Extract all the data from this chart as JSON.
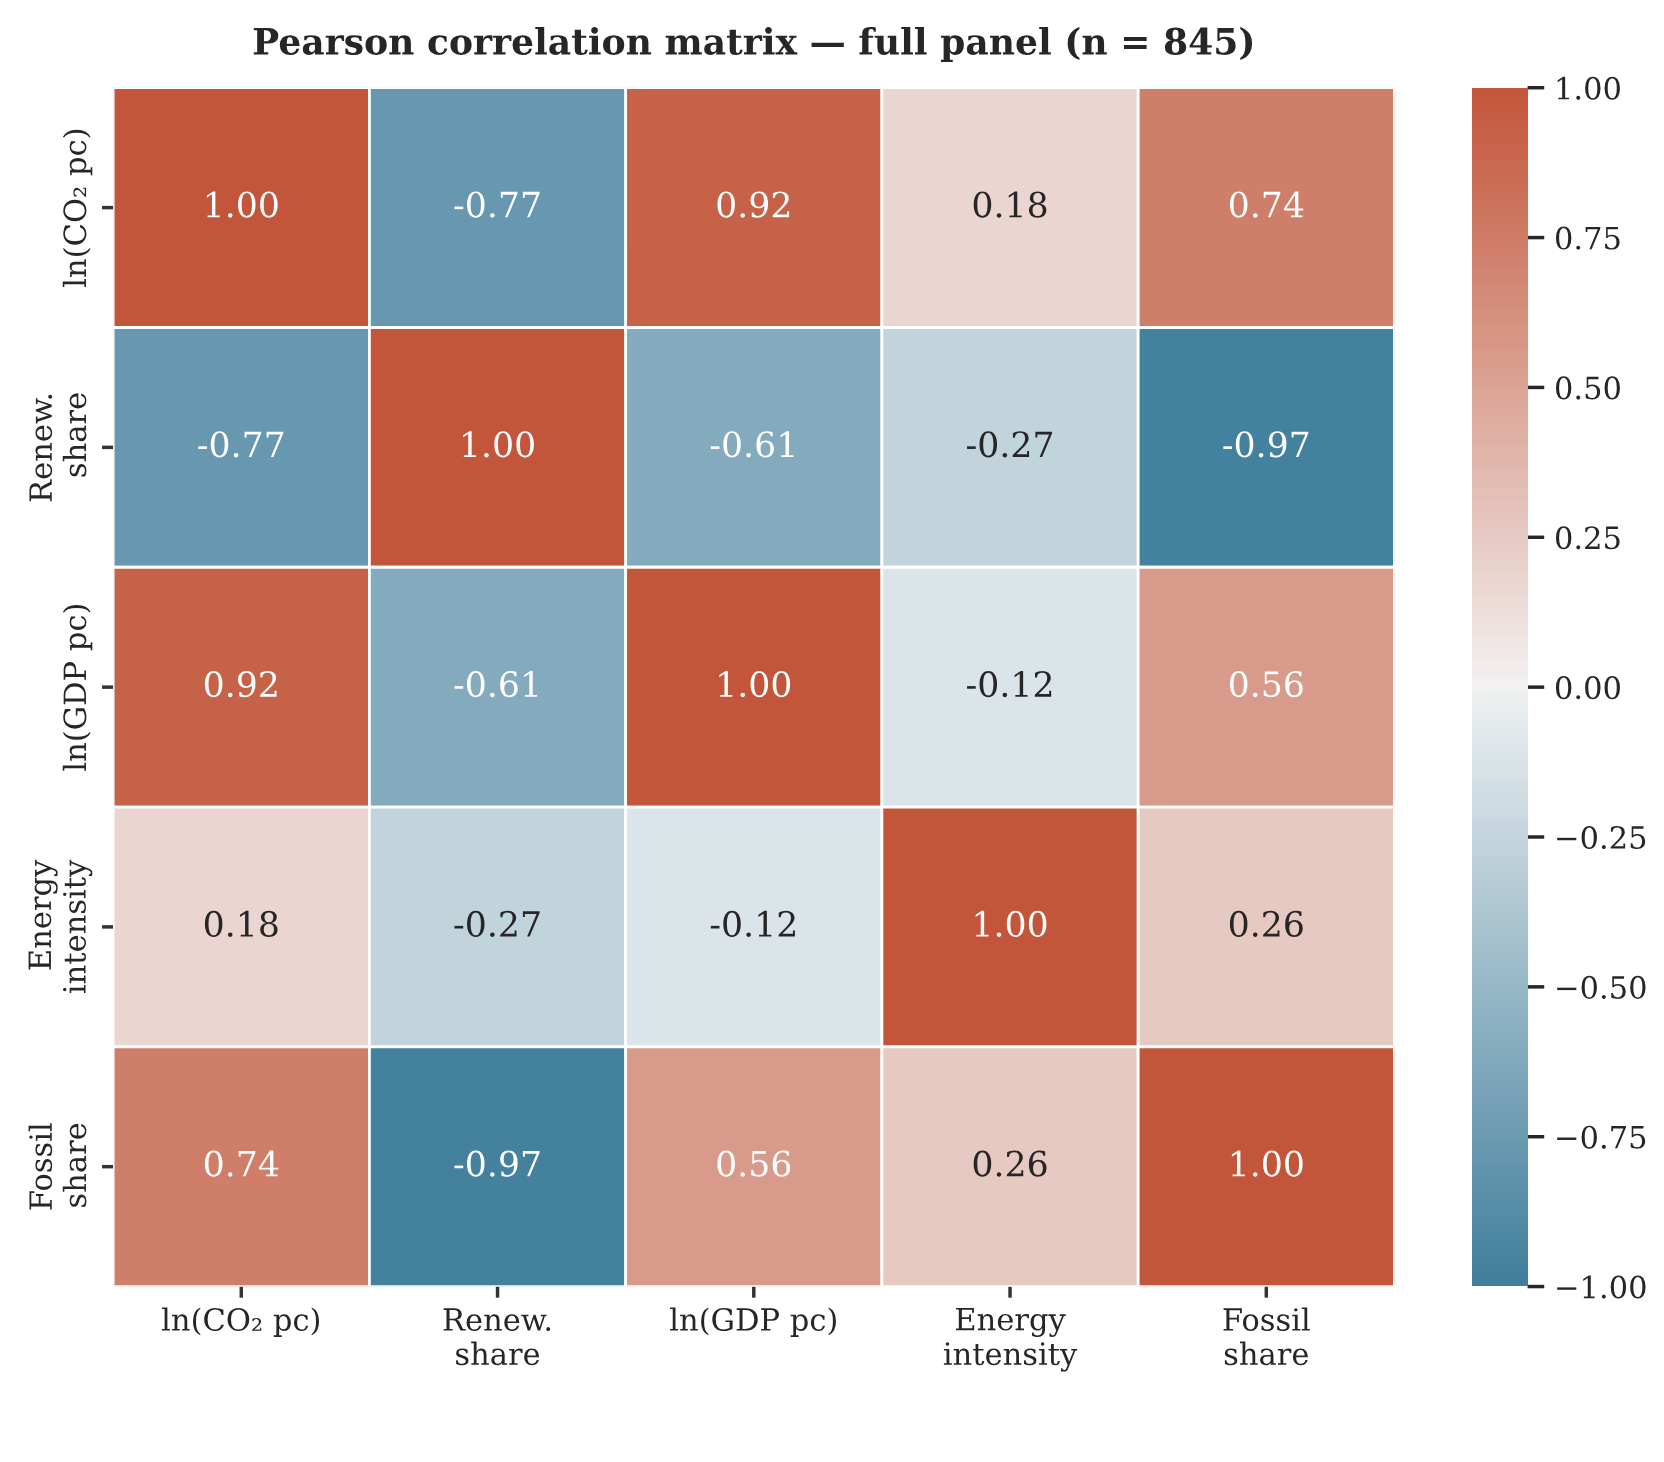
{
  "chart_data": {
    "type": "heatmap",
    "title": "Pearson correlation matrix — full panel (n = 845)",
    "categories": [
      "ln(CO₂ pc)",
      "Renew.\nshare",
      "ln(GDP pc)",
      "Energy\nintensity",
      "Fossil\nshare"
    ],
    "y_categories": [
      "ln(CO₂ pc)",
      "Renew.\nshare",
      "ln(GDP pc)",
      "Energy\nintensity",
      "Fossil\nshare"
    ],
    "cells": [
      [
        1.0,
        -0.77,
        0.92,
        0.18,
        0.74
      ],
      [
        -0.77,
        1.0,
        -0.61,
        -0.27,
        -0.97
      ],
      [
        0.92,
        -0.61,
        1.0,
        -0.12,
        0.56
      ],
      [
        0.18,
        -0.27,
        -0.12,
        1.0,
        0.26
      ],
      [
        0.74,
        -0.97,
        0.56,
        0.26,
        1.0
      ]
    ],
    "clim": [
      -1.0,
      1.0
    ],
    "cticks": [
      {
        "value": -1.0,
        "label": "−1.00"
      },
      {
        "value": -0.75,
        "label": "−0.75"
      },
      {
        "value": -0.5,
        "label": "−0.50"
      },
      {
        "value": -0.25,
        "label": "−0.25"
      },
      {
        "value": 0.0,
        "label": "0.00"
      },
      {
        "value": 0.25,
        "label": "0.25"
      },
      {
        "value": 0.5,
        "label": "0.50"
      },
      {
        "value": 0.75,
        "label": "0.75"
      },
      {
        "value": 1.0,
        "label": "1.00"
      }
    ],
    "cell_labels": [
      [
        "1.00",
        "-0.77",
        "0.92",
        "0.18",
        "0.74"
      ],
      [
        "-0.77",
        "1.00",
        "-0.61",
        "-0.27",
        "-0.97"
      ],
      [
        "0.92",
        "-0.61",
        "1.00",
        "-0.12",
        "0.56"
      ],
      [
        "0.18",
        "-0.27",
        "-0.12",
        "1.00",
        "0.26"
      ],
      [
        "0.74",
        "-0.97",
        "0.56",
        "0.26",
        "1.00"
      ]
    ]
  }
}
